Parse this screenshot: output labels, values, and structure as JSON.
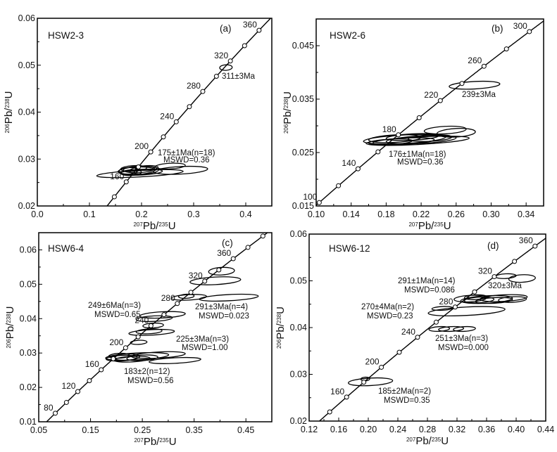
{
  "chart_data": [
    {
      "type": "scatter",
      "subtype": "U-Pb concordia with error ellipses",
      "panel": "(a)",
      "sample": "HSW2-3",
      "xlabel": {
        "iso1": "207",
        "t1": "Pb/",
        "iso2": "235",
        "t2": "U"
      },
      "ylabel": {
        "iso1": "206",
        "t1": "Pb/",
        "iso2": "238",
        "t2": "U"
      },
      "xlim": [
        0.0,
        0.45
      ],
      "ylim": [
        0.02,
        0.06
      ],
      "xticks": [
        "0.0",
        "0.1",
        "0.2",
        "0.3",
        "0.4"
      ],
      "yticks": [
        "0.02",
        "0.03",
        "0.04",
        "0.05",
        "0.06"
      ],
      "concordia_labeled_ages": [
        "160",
        "200",
        "240",
        "280",
        "320",
        "360"
      ],
      "concordia_tick_step_ma": 20,
      "annotations": [
        "311±3Ma",
        "175±1Ma(n=18)",
        "MSWD=0.36"
      ],
      "ellipses": [
        {
          "x": 0.197,
          "y": 0.0269,
          "rx": 0.083,
          "ry": 0.0007
        },
        {
          "x": 0.275,
          "y": 0.0276,
          "rx": 0.052,
          "ry": 0.0008
        },
        {
          "x": 0.255,
          "y": 0.0285,
          "rx": 0.029,
          "ry": 0.0006
        },
        {
          "x": 0.19,
          "y": 0.0275,
          "rx": 0.035,
          "ry": 0.0008
        },
        {
          "x": 0.195,
          "y": 0.0278,
          "rx": 0.03,
          "ry": 0.0007
        },
        {
          "x": 0.2,
          "y": 0.0272,
          "rx": 0.04,
          "ry": 0.0006
        },
        {
          "x": 0.185,
          "y": 0.028,
          "rx": 0.025,
          "ry": 0.0006
        },
        {
          "x": 0.205,
          "y": 0.0276,
          "rx": 0.028,
          "ry": 0.0008
        },
        {
          "x": 0.18,
          "y": 0.0271,
          "rx": 0.02,
          "ry": 0.0006
        },
        {
          "x": 0.21,
          "y": 0.0281,
          "rx": 0.022,
          "ry": 0.0005
        },
        {
          "x": 0.175,
          "y": 0.0275,
          "rx": 0.018,
          "ry": 0.0007
        },
        {
          "x": 0.362,
          "y": 0.0495,
          "rx": 0.012,
          "ry": 0.0006
        }
      ]
    },
    {
      "type": "scatter",
      "subtype": "U-Pb concordia with error ellipses",
      "panel": "(b)",
      "sample": "HSW2-6",
      "xlabel": {
        "iso1": "207",
        "t1": "Pb/",
        "iso2": "235",
        "t2": "U"
      },
      "ylabel": {
        "iso1": "206",
        "t1": "Pb/",
        "iso2": "238",
        "t2": "U"
      },
      "xlim": [
        0.1,
        0.36
      ],
      "ylim": [
        0.015,
        0.05
      ],
      "xticks": [
        "0.10",
        "0.14",
        "0.18",
        "0.22",
        "0.26",
        "0.30",
        "0.34"
      ],
      "yticks": [
        "0.015",
        "0.025",
        "0.035",
        "0.045"
      ],
      "concordia_labeled_ages": [
        "100",
        "140",
        "180",
        "220",
        "260",
        "300"
      ],
      "concordia_tick_step_ma": 20,
      "annotations": [
        "239±3Ma",
        "176±1Ma(n=18)",
        "MSWD=0.36"
      ],
      "ellipses": [
        {
          "x": 0.281,
          "y": 0.0376,
          "rx": 0.029,
          "ry": 0.0007
        },
        {
          "x": 0.201,
          "y": 0.0275,
          "rx": 0.047,
          "ry": 0.0008
        },
        {
          "x": 0.2475,
          "y": 0.0292,
          "rx": 0.024,
          "ry": 0.0007
        },
        {
          "x": 0.26,
          "y": 0.0287,
          "rx": 0.022,
          "ry": 0.0008
        },
        {
          "x": 0.216,
          "y": 0.0272,
          "rx": 0.059,
          "ry": 0.0007
        },
        {
          "x": 0.19,
          "y": 0.0276,
          "rx": 0.03,
          "ry": 0.0007
        },
        {
          "x": 0.2,
          "y": 0.0271,
          "rx": 0.035,
          "ry": 0.0006
        },
        {
          "x": 0.21,
          "y": 0.0279,
          "rx": 0.03,
          "ry": 0.0006
        },
        {
          "x": 0.22,
          "y": 0.0274,
          "rx": 0.04,
          "ry": 0.0007
        },
        {
          "x": 0.185,
          "y": 0.027,
          "rx": 0.025,
          "ry": 0.0005
        },
        {
          "x": 0.23,
          "y": 0.0277,
          "rx": 0.025,
          "ry": 0.0006
        }
      ]
    },
    {
      "type": "scatter",
      "subtype": "U-Pb concordia with error ellipses",
      "panel": "(c)",
      "sample": "HSW6-4",
      "xlabel": {
        "iso1": "207",
        "t1": "Pb/",
        "iso2": "235",
        "t2": "U"
      },
      "ylabel": {
        "iso1": "206",
        "t1": "Pb/",
        "iso2": "238",
        "t2": "U"
      },
      "xlim": [
        0.05,
        0.5
      ],
      "ylim": [
        0.01,
        0.065
      ],
      "xticks": [
        "0.05",
        "0.15",
        "0.25",
        "0.35",
        "0.45"
      ],
      "yticks": [
        "0.01",
        "0.02",
        "0.03",
        "0.04",
        "0.05",
        "0.06"
      ],
      "concordia_labeled_ages": [
        "80",
        "120",
        "160",
        "200",
        "240",
        "280",
        "320",
        "360"
      ],
      "concordia_tick_step_ma": 20,
      "annotations": [
        "249±6Ma(n=3)",
        "MSWD=0.65",
        "291±3Ma(n=4)",
        "MSWD=0.023",
        "225±3Ma(n=3)",
        "MSWD=1.00",
        "183±2(n=12)",
        "MSWD=0.56"
      ],
      "ellipses": [
        {
          "x": 0.313,
          "y": 0.0278,
          "rx": 0.05,
          "ry": 0.0008
        },
        {
          "x": 0.281,
          "y": 0.0294,
          "rx": 0.052,
          "ry": 0.0009
        },
        {
          "x": 0.24,
          "y": 0.029,
          "rx": 0.061,
          "ry": 0.001
        },
        {
          "x": 0.21,
          "y": 0.0285,
          "rx": 0.03,
          "ry": 0.0008
        },
        {
          "x": 0.22,
          "y": 0.0288,
          "rx": 0.025,
          "ry": 0.0009
        },
        {
          "x": 0.23,
          "y": 0.0282,
          "rx": 0.035,
          "ry": 0.0008
        },
        {
          "x": 0.205,
          "y": 0.0292,
          "rx": 0.02,
          "ry": 0.0007
        },
        {
          "x": 0.25,
          "y": 0.0286,
          "rx": 0.03,
          "ry": 0.0008
        },
        {
          "x": 0.268,
          "y": 0.036,
          "rx": 0.044,
          "ry": 0.0008
        },
        {
          "x": 0.263,
          "y": 0.0363,
          "rx": 0.025,
          "ry": 0.0007
        },
        {
          "x": 0.243,
          "y": 0.0331,
          "rx": 0.016,
          "ry": 0.0006
        },
        {
          "x": 0.289,
          "y": 0.0411,
          "rx": 0.044,
          "ry": 0.0009
        },
        {
          "x": 0.273,
          "y": 0.04,
          "rx": 0.035,
          "ry": 0.0008
        },
        {
          "x": 0.271,
          "y": 0.038,
          "rx": 0.02,
          "ry": 0.0007
        },
        {
          "x": 0.34,
          "y": 0.0462,
          "rx": 0.034,
          "ry": 0.0008
        },
        {
          "x": 0.417,
          "y": 0.0461,
          "rx": 0.057,
          "ry": 0.0009
        },
        {
          "x": 0.335,
          "y": 0.0465,
          "rx": 0.015,
          "ry": 0.0006
        },
        {
          "x": 0.391,
          "y": 0.051,
          "rx": 0.049,
          "ry": 0.0011
        },
        {
          "x": 0.403,
          "y": 0.0538,
          "rx": 0.025,
          "ry": 0.0011
        }
      ]
    },
    {
      "type": "scatter",
      "subtype": "U-Pb concordia with error ellipses",
      "panel": "(d)",
      "sample": "HSW6-12",
      "xlabel": {
        "iso1": "207",
        "t1": "Pb/",
        "iso2": "235",
        "t2": "U"
      },
      "ylabel": {
        "iso1": "206",
        "t1": "Pb/",
        "iso2": "238",
        "t2": "U"
      },
      "xlim": [
        0.12,
        0.44
      ],
      "ylim": [
        0.02,
        0.06
      ],
      "xticks": [
        "0.12",
        "0.16",
        "0.20",
        "0.24",
        "0.28",
        "0.32",
        "0.36",
        "0.40",
        "0.44"
      ],
      "yticks": [
        "0.02",
        "0.03",
        "0.04",
        "0.05",
        "0.06"
      ],
      "concordia_labeled_ages": [
        "160",
        "200",
        "240",
        "280",
        "320",
        "360"
      ],
      "concordia_tick_step_ma": 20,
      "annotations": [
        "291±1Ma(n=14)",
        "MSWD=0.086",
        "320±3Ma",
        "270±4Ma(n=2)",
        "MSWD=0.23",
        "251±3Ma(n=3)",
        "MSWD=0.000",
        "185±2Ma(n=2)",
        "MSWD=0.35"
      ],
      "ellipses": [
        {
          "x": 0.203,
          "y": 0.0284,
          "rx": 0.03,
          "ry": 0.0008
        },
        {
          "x": 0.196,
          "y": 0.029,
          "rx": 0.006,
          "ry": 0.0004
        },
        {
          "x": 0.296,
          "y": 0.0397,
          "rx": 0.014,
          "ry": 0.0005
        },
        {
          "x": 0.312,
          "y": 0.0397,
          "rx": 0.017,
          "ry": 0.0005
        },
        {
          "x": 0.33,
          "y": 0.0397,
          "rx": 0.015,
          "ry": 0.0005
        },
        {
          "x": 0.333,
          "y": 0.0435,
          "rx": 0.052,
          "ry": 0.0009
        },
        {
          "x": 0.3,
          "y": 0.0441,
          "rx": 0.014,
          "ry": 0.0004
        },
        {
          "x": 0.338,
          "y": 0.0462,
          "rx": 0.022,
          "ry": 0.0007
        },
        {
          "x": 0.36,
          "y": 0.046,
          "rx": 0.035,
          "ry": 0.0008
        },
        {
          "x": 0.383,
          "y": 0.0463,
          "rx": 0.032,
          "ry": 0.0007
        },
        {
          "x": 0.395,
          "y": 0.046,
          "rx": 0.019,
          "ry": 0.0006
        },
        {
          "x": 0.345,
          "y": 0.0465,
          "rx": 0.015,
          "ry": 0.0005
        },
        {
          "x": 0.37,
          "y": 0.0458,
          "rx": 0.025,
          "ry": 0.0006
        },
        {
          "x": 0.35,
          "y": 0.0459,
          "rx": 0.02,
          "ry": 0.0006
        },
        {
          "x": 0.386,
          "y": 0.051,
          "rx": 0.014,
          "ry": 0.0005
        },
        {
          "x": 0.408,
          "y": 0.0505,
          "rx": 0.018,
          "ry": 0.0008
        }
      ]
    }
  ]
}
